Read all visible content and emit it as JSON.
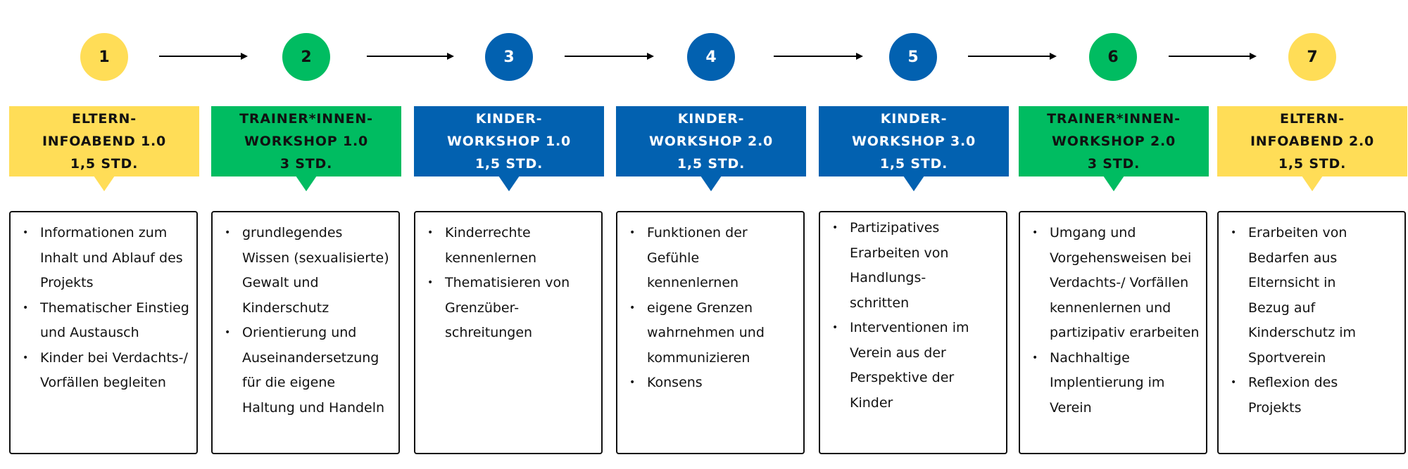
{
  "colors": {
    "yellow": "#FFDD57",
    "green": "#00BC61",
    "blue": "#0261B0",
    "dark_text": "#111111",
    "light_text": "#FFFFFF",
    "arrow": "#000000",
    "border": "#111111"
  },
  "steps": [
    {
      "number": "1",
      "color": "yellow",
      "title_lines": [
        "ELTERN-",
        "INFOABEND 1.0",
        "1,5 STD."
      ],
      "bullets": [
        [
          "Informationen zum",
          "Inhalt und Ablauf des",
          "Projekts"
        ],
        [
          "Thematischer Einstieg",
          "und Austausch"
        ],
        [
          "Kinder bei Verdachts-/",
          "Vorfällen begleiten"
        ]
      ]
    },
    {
      "number": "2",
      "color": "green",
      "title_lines": [
        "TRAINER*INNEN-",
        "WORKSHOP 1.0",
        "3 STD."
      ],
      "bullets": [
        [
          "grundlegendes",
          "Wissen (sexualisierte)",
          "Gewalt und",
          "Kinderschutz"
        ],
        [
          "Orientierung und",
          "Auseinandersetzung",
          "für die eigene",
          "Haltung und Handeln"
        ]
      ]
    },
    {
      "number": "3",
      "color": "blue",
      "title_lines": [
        "KINDER-",
        "WORKSHOP 1.0",
        "1,5 STD."
      ],
      "bullets": [
        [
          "Kinderrechte",
          "kennenlernen"
        ],
        [
          "Thematisieren von",
          "Grenzüber-",
          "schreitungen"
        ]
      ]
    },
    {
      "number": "4",
      "color": "blue",
      "title_lines": [
        "KINDER-",
        "WORKSHOP 2.0",
        "1,5 STD."
      ],
      "bullets": [
        [
          "Funktionen der",
          "Gefühle",
          "kennenlernen"
        ],
        [
          "eigene Grenzen",
          "wahrnehmen und",
          "kommunizieren"
        ],
        [
          "Konsens"
        ]
      ]
    },
    {
      "number": "5",
      "color": "blue",
      "title_lines": [
        "KINDER-",
        "WORKSHOP 3.0",
        "1,5 STD."
      ],
      "bullets": [
        [
          "Partizipatives",
          "Erarbeiten von",
          "Handlungs-",
          "schritten"
        ],
        [
          "Interventionen im",
          "Verein aus der",
          "Perspektive der",
          "Kinder"
        ]
      ]
    },
    {
      "number": "6",
      "color": "green",
      "title_lines": [
        "TRAINER*INNEN-",
        "WORKSHOP 2.0",
        "3 STD."
      ],
      "bullets": [
        [
          "Umgang und",
          "Vorgehensweisen bei",
          "Verdachts-/ Vorfällen",
          "kennenlernen und",
          "partizipativ erarbeiten"
        ],
        [
          "Nachhaltige",
          "Implentierung im",
          "Verein"
        ]
      ]
    },
    {
      "number": "7",
      "color": "yellow",
      "title_lines": [
        "ELTERN-",
        "INFOABEND 2.0",
        "1,5 STD."
      ],
      "bullets": [
        [
          "Erarbeiten von",
          "Bedarfen aus",
          "Elternsicht in",
          "Bezug auf",
          "Kinderschutz im",
          "Sportverein"
        ],
        [
          "Reflexion des",
          "Projekts"
        ]
      ]
    }
  ]
}
